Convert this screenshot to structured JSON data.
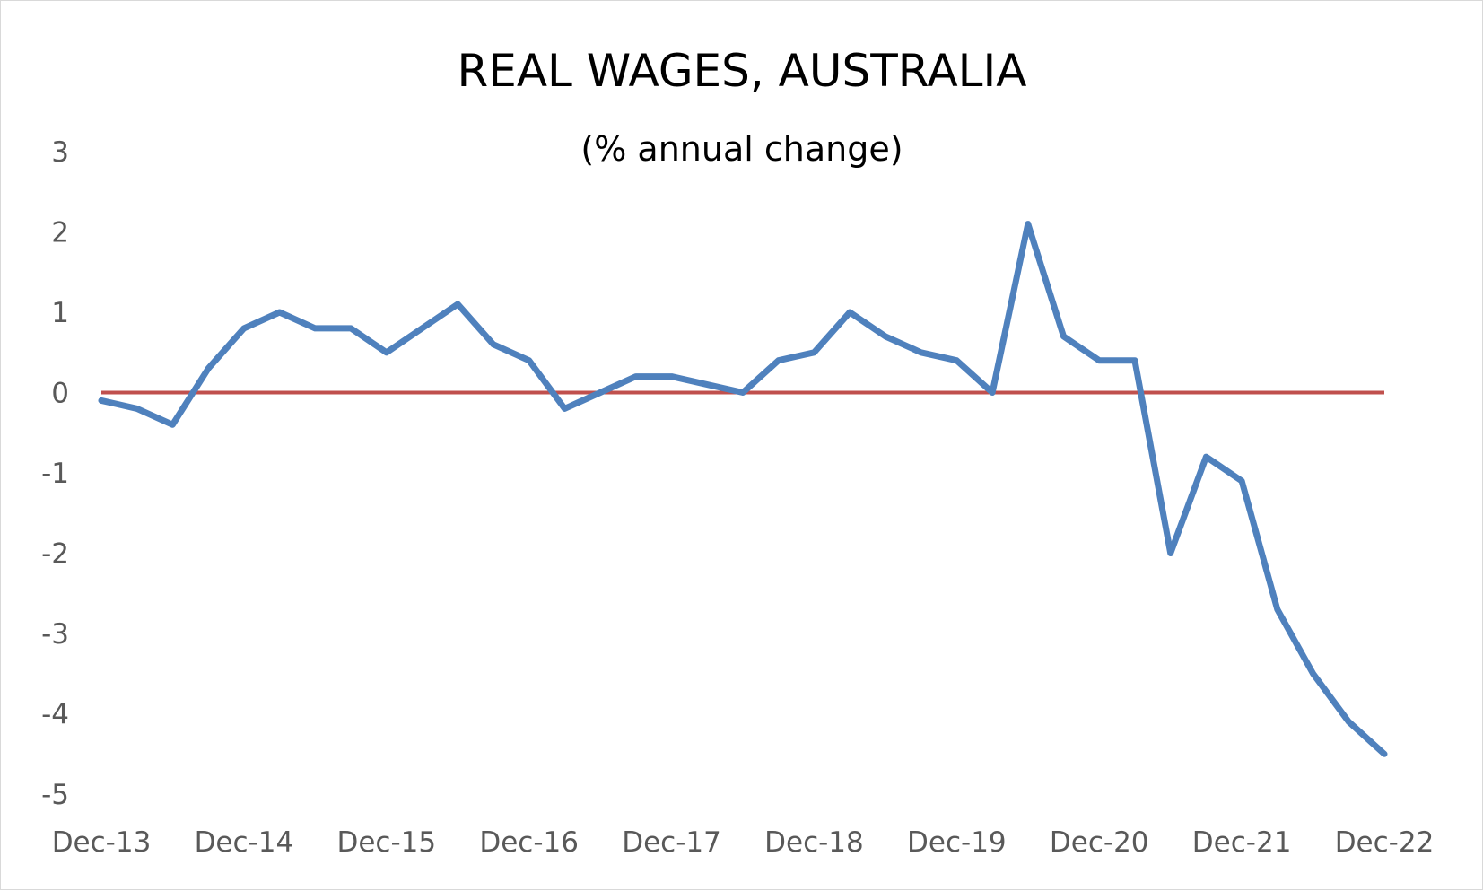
{
  "chart_data": {
    "type": "line",
    "title": "REAL WAGES, AUSTRALIA",
    "subtitle": "(% annual change)",
    "xlabel": "",
    "ylabel": "",
    "ylim": [
      -5,
      3
    ],
    "yticks": [
      3,
      2,
      1,
      0,
      -1,
      -2,
      -3,
      -4,
      -5
    ],
    "xtick_labels": [
      "Dec-13",
      "Dec-14",
      "Dec-15",
      "Dec-16",
      "Dec-17",
      "Dec-18",
      "Dec-19",
      "Dec-20",
      "Dec-21",
      "Dec-22"
    ],
    "grid": false,
    "legend": "none",
    "x": [
      "Dec-13",
      "Mar-14",
      "Jun-14",
      "Sep-14",
      "Dec-14",
      "Mar-15",
      "Jun-15",
      "Sep-15",
      "Dec-15",
      "Mar-16",
      "Jun-16",
      "Sep-16",
      "Dec-16",
      "Mar-17",
      "Jun-17",
      "Sep-17",
      "Dec-17",
      "Mar-18",
      "Jun-18",
      "Sep-18",
      "Dec-18",
      "Mar-19",
      "Jun-19",
      "Sep-19",
      "Dec-19",
      "Mar-20",
      "Jun-20",
      "Sep-20",
      "Dec-20",
      "Mar-21",
      "Jun-21",
      "Sep-21",
      "Dec-21",
      "Mar-22",
      "Jun-22",
      "Sep-22",
      "Dec-22"
    ],
    "series": [
      {
        "values": [
          -0.1,
          -0.2,
          -0.4,
          0.3,
          0.8,
          1.0,
          0.8,
          0.8,
          0.5,
          0.8,
          1.1,
          0.6,
          0.4,
          -0.2,
          0.0,
          0.2,
          0.2,
          0.1,
          0.0,
          0.4,
          0.5,
          1.0,
          0.7,
          0.5,
          0.4,
          0.0,
          2.1,
          0.7,
          0.4,
          0.4,
          -2.0,
          -0.8,
          -1.1,
          -2.7,
          -3.5,
          -4.1,
          -4.5
        ],
        "color": "#4F81BD"
      }
    ],
    "reference_line": {
      "y": 0,
      "color": "#C0504D"
    }
  }
}
